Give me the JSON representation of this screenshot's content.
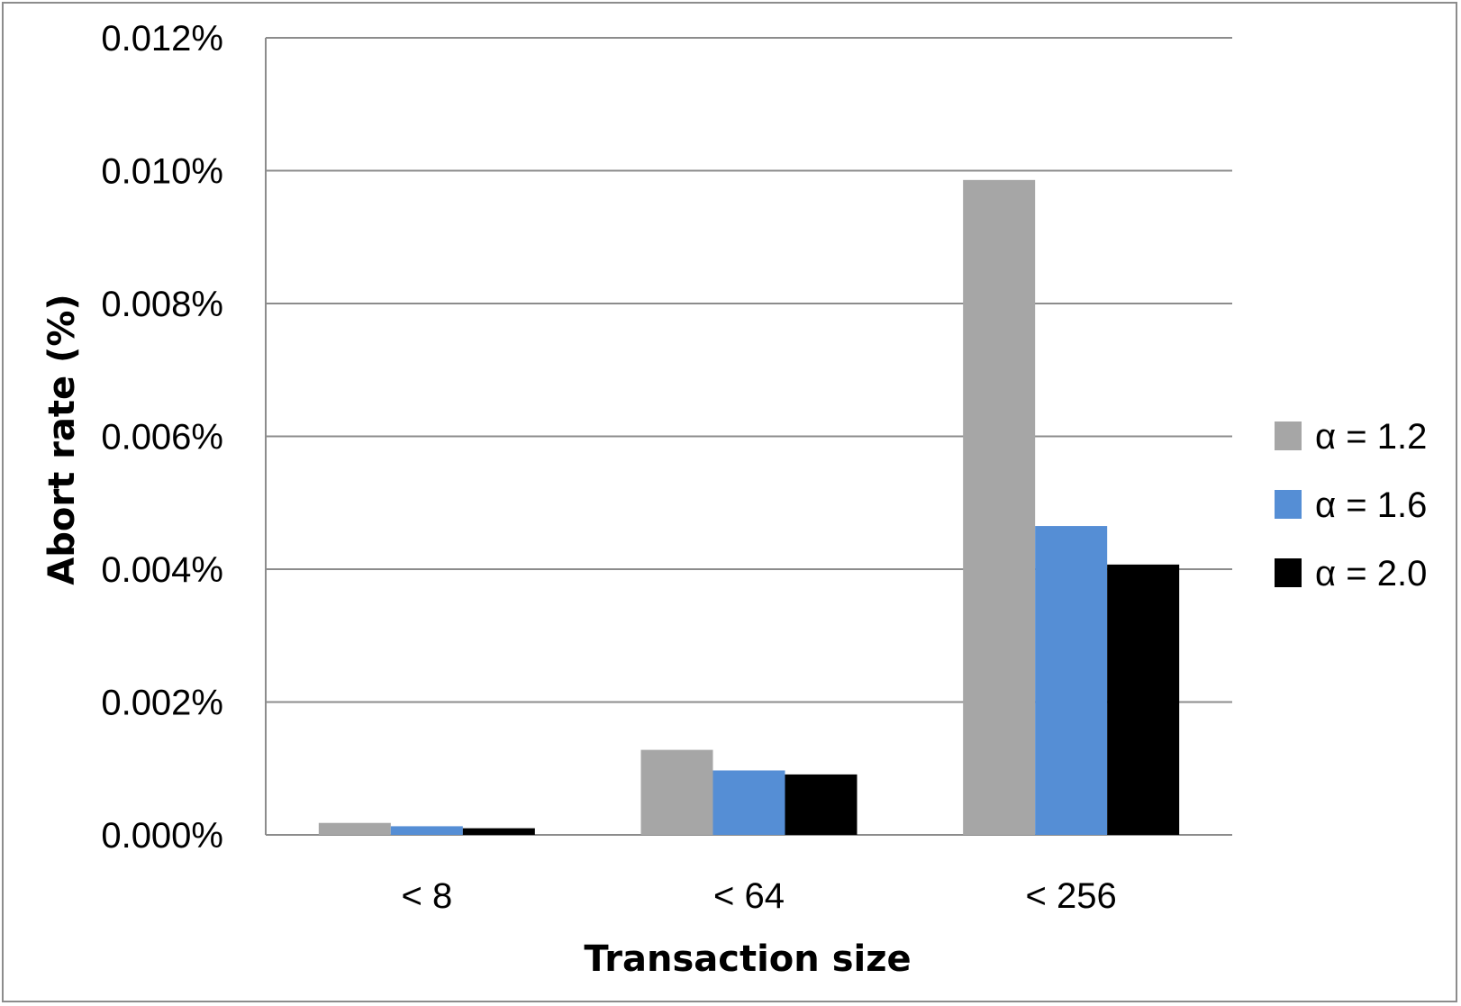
{
  "chart_data": {
    "type": "bar",
    "categories": [
      "< 8",
      "< 64",
      "< 256"
    ],
    "series": [
      {
        "name": "α = 1.2",
        "color": "#a6a6a6",
        "values": [
          0.00018,
          0.00128,
          0.00986
        ]
      },
      {
        "name": "α = 1.6",
        "color": "#558ed5",
        "values": [
          0.00013,
          0.00097,
          0.00465
        ]
      },
      {
        "name": "α = 2.0",
        "color": "#000000",
        "values": [
          0.0001,
          0.00091,
          0.00407
        ]
      }
    ],
    "xlabel": "Transaction size",
    "ylabel": "Abort rate (%)",
    "ylim": [
      0,
      0.012
    ],
    "yticks": [
      0,
      0.002,
      0.004,
      0.006,
      0.008,
      0.01,
      0.012
    ],
    "ytick_labels": [
      "0.000%",
      "0.002%",
      "0.004%",
      "0.006%",
      "0.008%",
      "0.010%",
      "0.012%"
    ],
    "grid": true,
    "legend_position": "right"
  }
}
